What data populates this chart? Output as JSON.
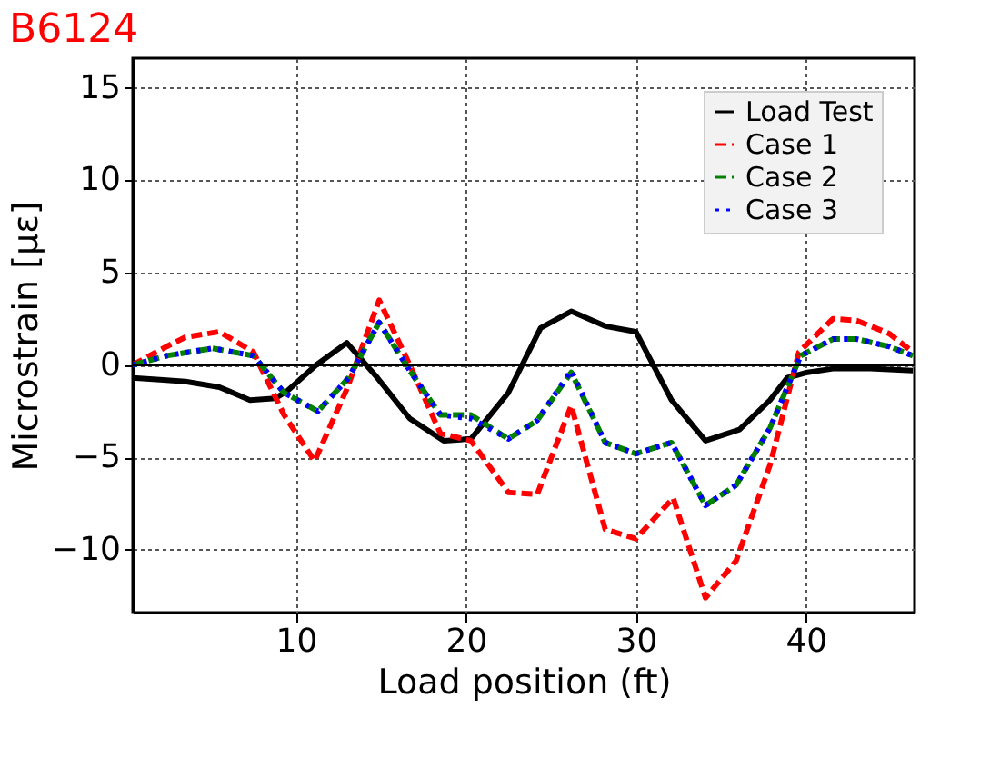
{
  "chart_data": {
    "type": "line",
    "title": "B6124",
    "xlabel": "Load position (ft)",
    "ylabel": "Microstrain [με]",
    "xlim": [
      0.4,
      46.4
    ],
    "ylim": [
      -13.4,
      16.6
    ],
    "xticks": [
      10,
      20,
      30,
      40
    ],
    "yticks": [
      -10,
      -5,
      0,
      5,
      10,
      15
    ],
    "grid": true,
    "legend": "top right",
    "marker": "none",
    "ref_lines": [
      {
        "axis": "y",
        "value": 0,
        "color": "#000000",
        "line_style": "solid"
      }
    ],
    "series": [
      {
        "name": "Load Test",
        "color": "#000000",
        "line_style": "solid",
        "x": [
          0.4,
          2.0,
          3.5,
          5.5,
          7.3,
          8.8,
          9.5,
          11.2,
          13.0,
          14.8,
          16.7,
          18.7,
          20.3,
          22.5,
          24.4,
          26.2,
          28.2,
          30.0,
          32.1,
          34.1,
          36.1,
          37.9,
          38.9,
          40.1,
          41.6,
          43.8,
          46.3
        ],
        "values": [
          -0.7,
          -0.8,
          -0.9,
          -1.2,
          -1.9,
          -1.8,
          -1.4,
          0,
          1.2,
          -0.7,
          -2.9,
          -4.1,
          -4.0,
          -1.5,
          2.0,
          2.9,
          2.1,
          1.8,
          -1.9,
          -4.1,
          -3.5,
          -1.9,
          -0.7,
          -0.4,
          -0.2,
          -0.2,
          -0.3
        ]
      },
      {
        "name": "Case 1",
        "color": "#ff0000",
        "line_style": "dashed",
        "x": [
          0.4,
          2.4,
          3.5,
          5.5,
          7.5,
          9.3,
          11.1,
          13.0,
          14.9,
          16.7,
          18.5,
          20.3,
          22.5,
          24.2,
          26.2,
          28.2,
          30.0,
          32.2,
          34.1,
          35.9,
          37.9,
          39.6,
          41.6,
          43.0,
          44.9,
          46.3
        ],
        "values": [
          0,
          1.0,
          1.5,
          1.8,
          0.7,
          -2.7,
          -5.2,
          -1.3,
          3.5,
          0,
          -3.7,
          -4.1,
          -6.9,
          -7.0,
          -2.2,
          -8.9,
          -9.4,
          -7.2,
          -12.6,
          -10.6,
          -5.4,
          0.7,
          2.5,
          2.4,
          1.7,
          0.7
        ]
      },
      {
        "name": "Case 2",
        "color": "#008000",
        "line_style": "dashed",
        "x": [
          0.4,
          2.4,
          5.1,
          7.5,
          9.3,
          11.3,
          13.1,
          14.9,
          16.7,
          18.5,
          20.3,
          22.5,
          24.2,
          26.2,
          28.2,
          30.0,
          32.1,
          34.1,
          35.9,
          37.9,
          39.7,
          41.6,
          43.0,
          44.9,
          46.3
        ],
        "values": [
          0,
          0.5,
          0.9,
          0.5,
          -1.5,
          -2.5,
          -0.7,
          2.3,
          -0.3,
          -2.7,
          -2.7,
          -4.0,
          -3.0,
          -0.4,
          -4.2,
          -4.8,
          -4.2,
          -7.6,
          -6.5,
          -3.4,
          0.5,
          1.4,
          1.4,
          1.0,
          0.5
        ]
      },
      {
        "name": "Case 3",
        "color": "#0000ff",
        "line_style": "dotted",
        "x": [
          0.4,
          2.4,
          5.1,
          7.5,
          9.3,
          11.3,
          13.1,
          14.9,
          16.7,
          18.5,
          20.3,
          22.5,
          24.2,
          26.2,
          28.2,
          30.0,
          32.1,
          34.1,
          35.9,
          37.9,
          39.7,
          41.6,
          43.0,
          44.9,
          46.3
        ],
        "values": [
          0,
          0.5,
          0.9,
          0.5,
          -1.5,
          -2.5,
          -0.7,
          2.3,
          -0.3,
          -2.7,
          -2.9,
          -4.0,
          -3.0,
          -0.3,
          -4.2,
          -4.8,
          -4.2,
          -7.6,
          -6.5,
          -3.4,
          0.5,
          1.4,
          1.4,
          1.0,
          0.5
        ]
      }
    ]
  }
}
